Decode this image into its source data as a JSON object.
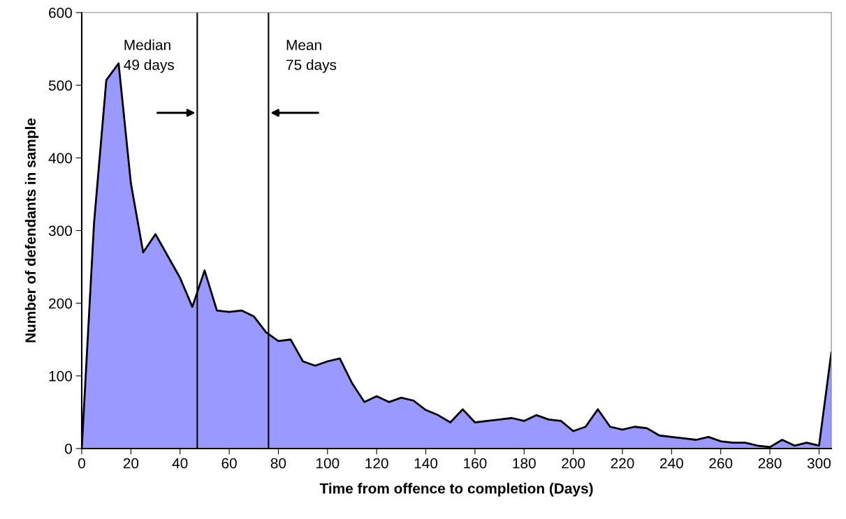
{
  "chart_data": {
    "type": "area",
    "xlabel": "Time from offence to completion (Days)",
    "ylabel": "Number of defendants in sample",
    "x": [
      0,
      5,
      10,
      15,
      20,
      25,
      30,
      35,
      40,
      45,
      50,
      55,
      60,
      65,
      70,
      75,
      80,
      85,
      90,
      95,
      100,
      105,
      110,
      115,
      120,
      125,
      130,
      135,
      140,
      145,
      150,
      155,
      160,
      165,
      170,
      175,
      180,
      185,
      190,
      195,
      200,
      205,
      210,
      215,
      220,
      225,
      230,
      235,
      240,
      245,
      250,
      255,
      260,
      265,
      270,
      275,
      280,
      285,
      290,
      295,
      300,
      305
    ],
    "series": [
      {
        "color": "#9999ff",
        "values": [
          0,
          310,
          507,
          530,
          365,
          270,
          295,
          265,
          235,
          195,
          245,
          190,
          188,
          190,
          182,
          160,
          148,
          150,
          120,
          114,
          120,
          124,
          90,
          64,
          72,
          64,
          70,
          66,
          53,
          46,
          36,
          54,
          36,
          38,
          40,
          42,
          38,
          46,
          40,
          38,
          24,
          30,
          54,
          30,
          26,
          30,
          28,
          18,
          16,
          14,
          12,
          16,
          10,
          8,
          8,
          4,
          2,
          12,
          4,
          8,
          4,
          132
        ]
      }
    ],
    "xlim": [
      0,
      305
    ],
    "ylim": [
      0,
      600
    ],
    "xticks": [
      0,
      20,
      40,
      60,
      80,
      100,
      120,
      140,
      160,
      180,
      200,
      220,
      240,
      260,
      280,
      300
    ],
    "yticks": [
      0,
      100,
      200,
      300,
      400,
      500,
      600
    ],
    "grid": false,
    "legend": false,
    "ref_lines": [
      {
        "axis": "x",
        "value": 47,
        "label": "Median\n49 days",
        "color": "#000000"
      },
      {
        "axis": "x",
        "value": 76,
        "label": "Mean\n75 days",
        "color": "#000000"
      }
    ]
  }
}
